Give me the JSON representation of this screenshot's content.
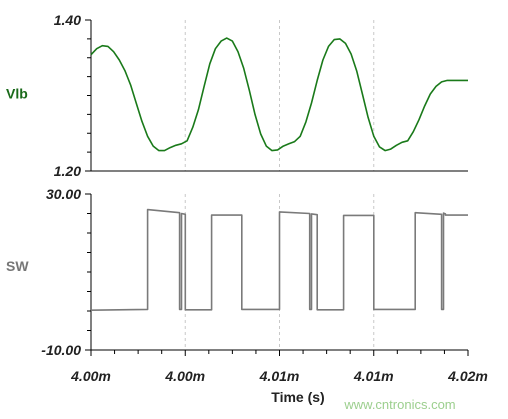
{
  "chart_data": [
    {
      "type": "line",
      "ylabel": "Vlb",
      "ylim": [
        1.2,
        1.4
      ],
      "yticks": [
        "1.40",
        "1.20"
      ],
      "grid": "vertical dashed",
      "color": "#1a7a1a",
      "series": [
        {
          "name": "Vlb",
          "x": [
            4.0,
            4.0003,
            4.0006,
            4.0009,
            4.0012,
            4.0015,
            4.0018,
            4.0021,
            4.0024,
            4.0027,
            4.003,
            4.0033,
            4.0036,
            4.0039,
            4.0042,
            4.0045,
            4.0048,
            4.0051,
            4.0054,
            4.0057,
            4.006,
            4.0063,
            4.0066,
            4.0069,
            4.0072,
            4.0075,
            4.0078,
            4.0081,
            4.0084,
            4.0087,
            4.009,
            4.0093,
            4.0096,
            4.0099,
            4.0102,
            4.0105,
            4.0108,
            4.0111,
            4.0114,
            4.0117,
            4.012,
            4.0123,
            4.0126,
            4.0129,
            4.0132,
            4.0135,
            4.0138,
            4.0141,
            4.0144,
            4.0147,
            4.015,
            4.0153,
            4.0156,
            4.0159,
            4.0162,
            4.0165,
            4.0168,
            4.0171,
            4.0174,
            4.0177,
            4.018,
            4.0183,
            4.0186,
            4.0189,
            4.0192,
            4.0195,
            4.0198,
            4.02
          ],
          "y": [
            1.354,
            1.362,
            1.366,
            1.365,
            1.358,
            1.347,
            1.333,
            1.314,
            1.29,
            1.266,
            1.246,
            1.233,
            1.227,
            1.227,
            1.231,
            1.234,
            1.236,
            1.24,
            1.258,
            1.281,
            1.312,
            1.342,
            1.362,
            1.372,
            1.376,
            1.372,
            1.358,
            1.336,
            1.307,
            1.275,
            1.249,
            1.233,
            1.227,
            1.228,
            1.233,
            1.236,
            1.239,
            1.246,
            1.265,
            1.29,
            1.32,
            1.347,
            1.365,
            1.374,
            1.375,
            1.369,
            1.355,
            1.332,
            1.302,
            1.271,
            1.246,
            1.232,
            1.227,
            1.229,
            1.234,
            1.238,
            1.24,
            1.252,
            1.268,
            1.286,
            1.302,
            1.312,
            1.318,
            1.32,
            1.32,
            1.32,
            1.32,
            1.32
          ]
        }
      ]
    },
    {
      "type": "line",
      "ylabel": "SW",
      "ylim": [
        -10.0,
        30.0
      ],
      "yticks": [
        "30.00",
        "-10.00"
      ],
      "grid": "vertical dashed",
      "color": "#7a7a7a",
      "series": [
        {
          "name": "SW",
          "x": [
            4.0,
            4.003,
            4.003,
            4.0047,
            4.0047,
            4.0048,
            4.0048,
            4.005,
            4.005,
            4.0064,
            4.0064,
            4.008,
            4.008,
            4.01,
            4.01,
            4.0116,
            4.0116,
            4.0117,
            4.0117,
            4.012,
            4.012,
            4.0134,
            4.0134,
            4.015,
            4.015,
            4.0172,
            4.0172,
            4.0186,
            4.0186,
            4.0187,
            4.0187,
            4.0188,
            4.0188,
            4.02
          ],
          "y": [
            0.2,
            0.4,
            26.0,
            25.2,
            0.4,
            0.4,
            25.0,
            24.8,
            0.3,
            0.3,
            24.6,
            24.6,
            0.4,
            0.4,
            25.4,
            25.0,
            0.4,
            0.4,
            24.9,
            24.7,
            0.3,
            0.3,
            24.5,
            24.5,
            0.4,
            0.4,
            25.2,
            24.8,
            0.4,
            0.4,
            25.1,
            24.9,
            24.6,
            24.6
          ]
        }
      ]
    }
  ],
  "xaxis": {
    "title": "Time (s)",
    "xlim": [
      4.0,
      4.02
    ],
    "ticks": [
      "4.00m",
      "4.00m",
      "4.01m",
      "4.01m",
      "4.02m"
    ]
  },
  "watermark": "www.cntronics.com"
}
